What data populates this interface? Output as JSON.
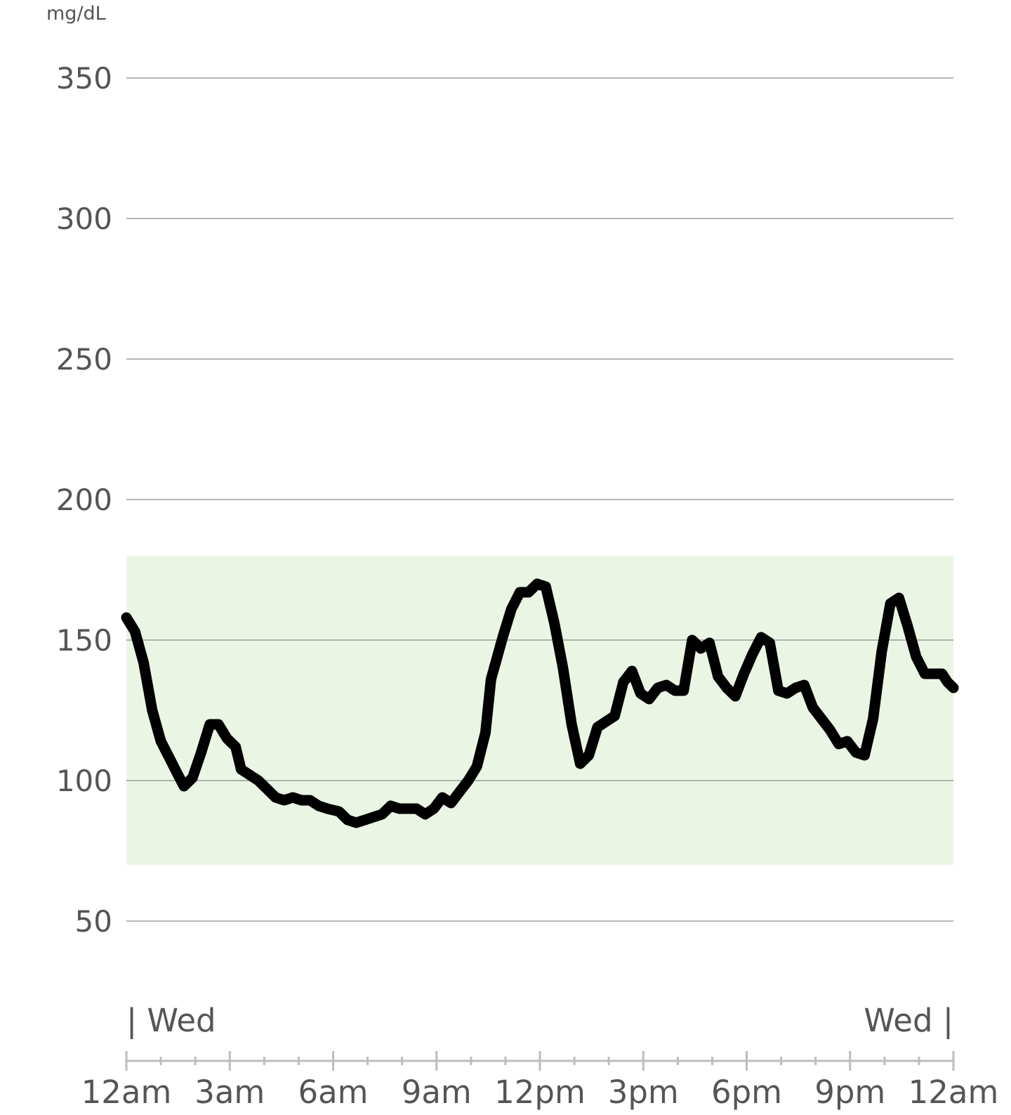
{
  "chart_data": {
    "type": "line",
    "unit_label": "mg/dL",
    "ylim": [
      20,
      370
    ],
    "y_ticks": [
      {
        "label": "350",
        "value": 350
      },
      {
        "label": "300",
        "value": 300
      },
      {
        "label": "250",
        "value": 250
      },
      {
        "label": "200",
        "value": 200
      },
      {
        "label": "150",
        "value": 150
      },
      {
        "label": "100",
        "value": 100
      },
      {
        "label": "50",
        "value": 50
      }
    ],
    "xlim": [
      0,
      24
    ],
    "x_ticks": [
      {
        "label": "12am",
        "value": 0
      },
      {
        "label": "3am",
        "value": 3
      },
      {
        "label": "6am",
        "value": 6
      },
      {
        "label": "9am",
        "value": 9
      },
      {
        "label": "12pm",
        "value": 12
      },
      {
        "label": "3pm",
        "value": 15
      },
      {
        "label": "6pm",
        "value": 18
      },
      {
        "label": "9pm",
        "value": 21
      },
      {
        "label": "12am",
        "value": 24
      }
    ],
    "day_markers": [
      {
        "label": "| Wed",
        "position": "start"
      },
      {
        "label": "Wed |",
        "position": "end"
      }
    ],
    "target_range": {
      "low": 70,
      "high": 180,
      "color": "#ebf5e4"
    },
    "line_color": "#000000",
    "grid": true,
    "series": [
      {
        "x": [
          0,
          0.25,
          0.5,
          0.75,
          1,
          1.25,
          1.5,
          1.67,
          1.92,
          2.17,
          2.42,
          2.67,
          2.92,
          3.17,
          3.33,
          3.58,
          3.83,
          4.08,
          4.33,
          4.58,
          4.83,
          5.08,
          5.33,
          5.58,
          5.83,
          6.17,
          6.42,
          6.67,
          6.92,
          7.17,
          7.42,
          7.67,
          7.92,
          8.17,
          8.42,
          8.67,
          8.92,
          9.17,
          9.42,
          9.67,
          9.92,
          10.17,
          10.42,
          10.58,
          10.92,
          11.17,
          11.42,
          11.67,
          11.92,
          12.17,
          12.42,
          12.67,
          12.92,
          13.17,
          13.42,
          13.67,
          13.92,
          14.17,
          14.42,
          14.67,
          14.92,
          15.17,
          15.42,
          15.67,
          15.92,
          16.17,
          16.42,
          16.67,
          16.92,
          17.17,
          17.42,
          17.67,
          17.92,
          18.17,
          18.42,
          18.67,
          18.92,
          19.17,
          19.42,
          19.67,
          19.92,
          20.17,
          20.42,
          20.67,
          20.92,
          21.17,
          21.42,
          21.67,
          21.92,
          22.17,
          22.42,
          22.67,
          22.92,
          23.17,
          23.42,
          23.67,
          23.83,
          24
        ],
        "values": [
          158,
          153,
          142,
          125,
          114,
          108,
          102,
          98,
          101,
          110,
          120,
          120,
          115,
          112,
          104,
          102,
          100,
          97,
          94,
          93,
          94,
          93,
          93,
          91,
          90,
          89,
          86,
          85,
          86,
          87,
          88,
          91,
          90,
          90,
          90,
          88,
          90,
          94,
          92,
          96,
          100,
          105,
          117,
          136,
          151,
          161,
          167,
          167,
          170,
          169,
          156,
          140,
          120,
          106,
          109,
          119,
          121,
          123,
          135,
          139,
          131,
          129,
          133,
          134,
          132,
          132,
          150,
          147,
          149,
          137,
          133,
          130,
          138,
          145,
          151,
          149,
          132,
          131,
          133,
          134,
          126,
          122,
          118,
          113,
          114,
          110,
          109,
          122,
          146,
          163,
          165,
          155,
          144,
          138,
          138,
          138,
          135,
          133
        ]
      }
    ]
  }
}
